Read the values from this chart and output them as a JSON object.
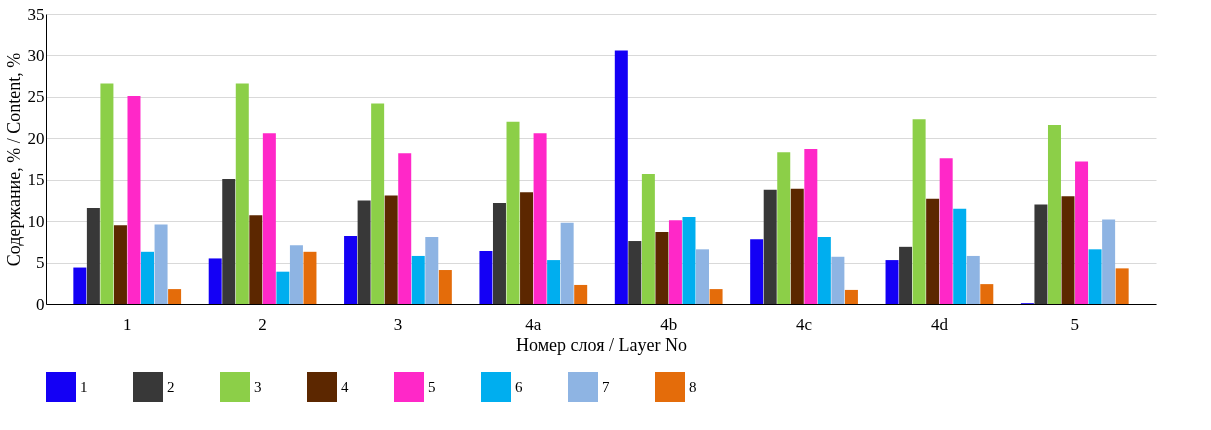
{
  "chart_data": {
    "type": "bar",
    "xlabel": "Номер слоя / Layer No",
    "ylabel": "Содержание, % / Content, %",
    "categories": [
      "1",
      "2",
      "3",
      "4a",
      "4b",
      "4c",
      "4d",
      "5"
    ],
    "series": [
      {
        "name": "1",
        "color": "#1400f5",
        "values": [
          4.4,
          5.5,
          8.2,
          6.4,
          30.6,
          7.8,
          5.3,
          0.1
        ]
      },
      {
        "name": "2",
        "color": "#383838",
        "values": [
          11.6,
          15.1,
          12.5,
          12.2,
          7.6,
          13.8,
          6.9,
          12.0
        ]
      },
      {
        "name": "3",
        "color": "#8ccf48",
        "values": [
          26.6,
          26.6,
          24.2,
          22.0,
          15.7,
          18.3,
          22.3,
          21.6
        ]
      },
      {
        "name": "4",
        "color": "#5c2700",
        "values": [
          9.5,
          10.7,
          13.1,
          13.5,
          8.7,
          13.9,
          12.7,
          13.0
        ]
      },
      {
        "name": "5",
        "color": "#ff28c8",
        "values": [
          25.1,
          20.6,
          18.2,
          20.6,
          10.1,
          18.7,
          17.6,
          17.2
        ]
      },
      {
        "name": "6",
        "color": "#00aeef",
        "values": [
          6.3,
          3.9,
          5.8,
          5.3,
          10.5,
          8.1,
          11.5,
          6.6
        ]
      },
      {
        "name": "7",
        "color": "#8eb4e3",
        "values": [
          9.6,
          7.1,
          8.1,
          9.8,
          6.6,
          5.7,
          5.8,
          10.2
        ]
      },
      {
        "name": "8",
        "color": "#e46c0a",
        "values": [
          1.8,
          6.3,
          4.1,
          2.3,
          1.8,
          1.7,
          2.4,
          4.3
        ]
      }
    ],
    "ylim": [
      0,
      35
    ],
    "yticks": [
      0,
      5,
      10,
      15,
      20,
      25,
      30,
      35
    ],
    "grid": "y",
    "legend": "bottom"
  }
}
